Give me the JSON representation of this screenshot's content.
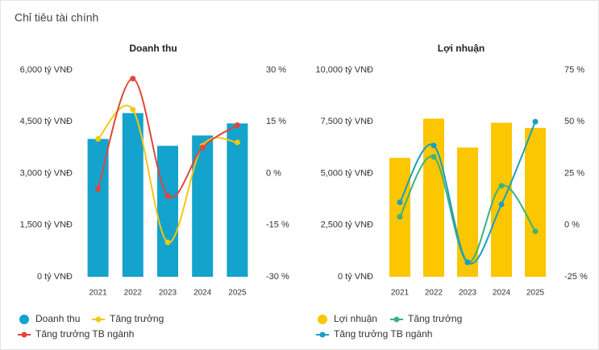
{
  "title": "Chỉ tiêu tài chính",
  "chart_data": [
    {
      "type": "combo",
      "title": "Doanh thu",
      "categories": [
        "2021",
        "2022",
        "2023",
        "2024",
        "2025"
      ],
      "ylim": [
        0,
        6000
      ],
      "yticks": [
        {
          "value": 0,
          "label": "0 tỷ VNĐ"
        },
        {
          "value": 1500,
          "label": "1,500 tỷ VNĐ"
        },
        {
          "value": 3000,
          "label": "3,000 tỷ VNĐ"
        },
        {
          "value": 4500,
          "label": "4,500 tỷ VNĐ"
        },
        {
          "value": 6000,
          "label": "6,000 tỷ VNĐ"
        }
      ],
      "y2lim": [
        -30,
        30
      ],
      "y2ticks": [
        {
          "value": -30,
          "label": "-30 %"
        },
        {
          "value": -15,
          "label": "-15 %"
        },
        {
          "value": 0,
          "label": "0 %"
        },
        {
          "value": 15,
          "label": "15 %"
        },
        {
          "value": 30,
          "label": "30 %"
        }
      ],
      "series": [
        {
          "name": "Doanh thu",
          "type": "bar",
          "color": "#14a3cc",
          "values": [
            4000,
            4750,
            3800,
            4100,
            4450
          ]
        },
        {
          "name": "Tăng trưởng",
          "type": "line",
          "axis": "y2",
          "color": "#f2c811",
          "values": [
            10,
            18.5,
            -20,
            8,
            9
          ]
        },
        {
          "name": "Tăng trưởng TB ngành",
          "type": "line",
          "axis": "y2",
          "color": "#e0463a",
          "values": [
            -4.5,
            27.5,
            -6.5,
            7.5,
            14
          ]
        }
      ]
    },
    {
      "type": "combo",
      "title": "Lợi nhuận",
      "categories": [
        "2021",
        "2022",
        "2023",
        "2024",
        "2025"
      ],
      "ylim": [
        0,
        10000
      ],
      "yticks": [
        {
          "value": 0,
          "label": "0 tỷ VNĐ"
        },
        {
          "value": 2500,
          "label": "2,500 tỷ VNĐ"
        },
        {
          "value": 5000,
          "label": "5,000 tỷ VNĐ"
        },
        {
          "value": 7500,
          "label": "7,500 tỷ VNĐ"
        },
        {
          "value": 10000,
          "label": "10,000 tỷ VNĐ"
        }
      ],
      "y2lim": [
        -25,
        75
      ],
      "y2ticks": [
        {
          "value": -25,
          "label": "-25 %"
        },
        {
          "value": 0,
          "label": "0 %"
        },
        {
          "value": 25,
          "label": "25 %"
        },
        {
          "value": 50,
          "label": "50 %"
        },
        {
          "value": 75,
          "label": "75 %"
        }
      ],
      "series": [
        {
          "name": "Lợi nhuận",
          "type": "bar",
          "color": "#fcc600",
          "values": [
            5750,
            7650,
            6250,
            7450,
            7200
          ]
        },
        {
          "name": "Tăng trưởng",
          "type": "line",
          "axis": "y2",
          "color": "#3cb37a",
          "values": [
            4,
            33,
            -18,
            19,
            -3
          ]
        },
        {
          "name": "Tăng trưởng TB ngành",
          "type": "line",
          "axis": "y2",
          "color": "#1a9fc0",
          "values": [
            11,
            38.5,
            -18,
            10,
            50
          ]
        }
      ]
    }
  ]
}
